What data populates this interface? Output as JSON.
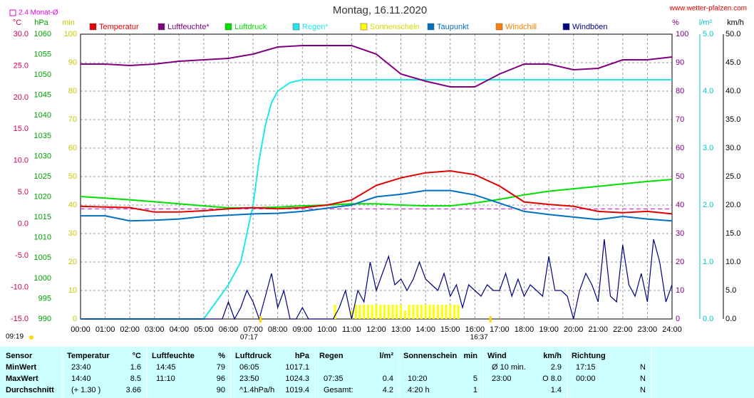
{
  "chart_data": {
    "type": "line",
    "title": "Montag, 16.11.2020",
    "site": "www.wetter-pfalzen.com",
    "monthly_avg": {
      "label": "2.4 Monat-Ø",
      "value": 2.4,
      "axis": "temp",
      "color": "#e000e0"
    },
    "sunrise": "07:17",
    "sunset": "16:37",
    "day_length": "09:19",
    "xlim": [
      0,
      24
    ],
    "xticks": [
      {
        "value": 0,
        "label": "00:00"
      },
      {
        "value": 1,
        "label": "01:00"
      },
      {
        "value": 2,
        "label": "02:00"
      },
      {
        "value": 3,
        "label": "03:00"
      },
      {
        "value": 4,
        "label": "04:00"
      },
      {
        "value": 5,
        "label": "05:00"
      },
      {
        "value": 6,
        "label": "06:00"
      },
      {
        "value": 7,
        "label": "07:00"
      },
      {
        "value": 8,
        "label": "08:00"
      },
      {
        "value": 9,
        "label": "09:00"
      },
      {
        "value": 10,
        "label": "10:00"
      },
      {
        "value": 11,
        "label": "11:00"
      },
      {
        "value": 12,
        "label": "12:00"
      },
      {
        "value": 13,
        "label": "13:00"
      },
      {
        "value": 14,
        "label": "14:00"
      },
      {
        "value": 15,
        "label": "15:00"
      },
      {
        "value": 16,
        "label": "16:00"
      },
      {
        "value": 17,
        "label": "17:00"
      },
      {
        "value": 18,
        "label": "18:00"
      },
      {
        "value": 19,
        "label": "19:00"
      },
      {
        "value": 20,
        "label": "20:00"
      },
      {
        "value": 21,
        "label": "21:00"
      },
      {
        "value": 22,
        "label": "22:00"
      },
      {
        "value": 23,
        "label": "23:00"
      },
      {
        "value": 24,
        "label": "24:00"
      }
    ],
    "grid": true,
    "grid_axis": "min",
    "axes": {
      "temp": {
        "unit": "°C",
        "color": "#d0005a",
        "lim": [
          -15,
          30
        ],
        "ticks": [
          {
            "value": 30,
            "label": "30.0"
          },
          {
            "value": 25,
            "label": "25.0"
          },
          {
            "value": 20,
            "label": "20.0"
          },
          {
            "value": 15,
            "label": "15.0"
          },
          {
            "value": 10,
            "label": "10.0"
          },
          {
            "value": 5,
            "label": "5.0"
          },
          {
            "value": 0,
            "label": "0.0"
          },
          {
            "value": -5,
            "label": "-5.0"
          },
          {
            "value": -10,
            "label": "-10.0"
          },
          {
            "value": -15,
            "label": "-15.0"
          }
        ]
      },
      "hpa": {
        "unit": "hPa",
        "color": "#00a000",
        "lim": [
          990,
          1060
        ],
        "ticks": [
          1060,
          1055,
          1050,
          1045,
          1040,
          1035,
          1030,
          1025,
          1020,
          1015,
          1010,
          1005,
          1000,
          995,
          990
        ]
      },
      "min": {
        "unit": "min",
        "color": "#c8c800",
        "lim": [
          0,
          100
        ],
        "ticks": [
          100,
          90,
          80,
          70,
          60,
          50,
          40,
          30,
          20,
          10,
          0
        ]
      },
      "pct": {
        "unit": "%",
        "color": "#800080",
        "lim": [
          0,
          100
        ],
        "ticks": [
          100,
          90,
          80,
          70,
          60,
          50,
          40,
          30,
          20,
          10,
          0
        ]
      },
      "rain": {
        "unit": "l/m²",
        "color": "#00c8c8",
        "lim": [
          0,
          5
        ],
        "ticks": [
          {
            "value": 5,
            "label": "5.0"
          },
          {
            "value": 4,
            "label": "4.0"
          },
          {
            "value": 3,
            "label": "3.0"
          },
          {
            "value": 2,
            "label": "2.0"
          },
          {
            "value": 1,
            "label": "1.0"
          },
          {
            "value": 0,
            "label": "0.0"
          }
        ]
      },
      "kmh": {
        "unit": "km/h",
        "color": "#000000",
        "lim": [
          0,
          50
        ],
        "ticks": [
          {
            "value": 50,
            "label": "50.0"
          },
          {
            "value": 45,
            "label": "45.0"
          },
          {
            "value": 40,
            "label": "40.0"
          },
          {
            "value": 35,
            "label": "35.0"
          },
          {
            "value": 30,
            "label": "30.0"
          },
          {
            "value": 25,
            "label": "25.0"
          },
          {
            "value": 20,
            "label": "20.0"
          },
          {
            "value": 15,
            "label": "15.0"
          },
          {
            "value": 10,
            "label": "10.0"
          },
          {
            "value": 5,
            "label": "5.0"
          },
          {
            "value": 0,
            "label": "0.0"
          }
        ]
      }
    },
    "x": [
      0,
      1,
      2,
      3,
      4,
      5,
      6,
      7,
      8,
      9,
      10,
      11,
      12,
      13,
      14,
      15,
      16,
      17,
      18,
      19,
      20,
      21,
      22,
      23,
      24
    ],
    "series": [
      {
        "name": "Temperatur",
        "color": "#e00000",
        "axis": "temp",
        "values": [
          2.8,
          2.7,
          2.6,
          1.9,
          1.9,
          2.1,
          2.4,
          2.6,
          2.4,
          2.6,
          3.0,
          3.8,
          6.1,
          7.3,
          8.1,
          8.4,
          7.8,
          6.0,
          3.5,
          3.1,
          2.8,
          2.0,
          1.8,
          2.0,
          1.6
        ]
      },
      {
        "name": "Luftfeuchte*",
        "color": "#800080",
        "axis": "pct",
        "values": [
          89.5,
          89.5,
          89,
          89.5,
          90.5,
          91,
          91.5,
          93,
          95.5,
          96,
          96,
          96,
          93,
          86,
          83.5,
          81.5,
          81.5,
          86,
          89.5,
          89.5,
          87.5,
          88,
          91,
          91,
          92
        ]
      },
      {
        "name": "Luftdruck",
        "color": "#00e000",
        "axis": "hpa",
        "values": [
          1020.1,
          1019.7,
          1019.3,
          1018.8,
          1018.3,
          1017.8,
          1017.3,
          1017.3,
          1017.5,
          1017.8,
          1018.0,
          1018.3,
          1018.3,
          1018.0,
          1017.8,
          1017.8,
          1018.5,
          1019.4,
          1020.5,
          1021.4,
          1022.0,
          1022.6,
          1023.2,
          1023.8,
          1024.3
        ]
      },
      {
        "name": "Regen*",
        "color": "#20e8e8",
        "axis": "rain",
        "x": [
          0,
          5,
          5.5,
          6,
          6.5,
          7,
          7.25,
          7.5,
          7.75,
          8,
          8.5,
          9,
          24
        ],
        "values": [
          0,
          0,
          0.3,
          0.6,
          1.0,
          2.0,
          2.8,
          3.4,
          3.8,
          4.0,
          4.15,
          4.2,
          4.2
        ]
      },
      {
        "name": "Sonnenschein",
        "color": "#ffff00",
        "axis": "min",
        "kind": "bar",
        "x": [
          10.33,
          11.0,
          11.17,
          11.33,
          11.5,
          11.67,
          11.83,
          12.0,
          12.17,
          12.33,
          12.5,
          12.67,
          12.83,
          13.0,
          13.17,
          13.33,
          13.5,
          13.67,
          13.83,
          14.0,
          14.17,
          14.33,
          14.5,
          14.67,
          14.83,
          15.0,
          15.17,
          15.33
        ],
        "values": [
          5,
          3,
          5,
          5,
          5,
          5,
          5,
          5,
          5,
          5,
          5,
          5,
          5,
          5,
          3,
          5,
          5,
          5,
          5,
          5,
          5,
          5,
          5,
          5,
          5,
          5,
          5,
          5
        ]
      },
      {
        "name": "Taupunkt",
        "color": "#0070c0",
        "axis": "temp",
        "values": [
          1.3,
          1.3,
          0.5,
          0.6,
          0.8,
          1.2,
          1.4,
          1.6,
          1.7,
          2.0,
          2.5,
          3.0,
          4.3,
          4.7,
          5.3,
          5.3,
          4.6,
          3.3,
          2.0,
          1.5,
          1.1,
          0.7,
          1.2,
          0.8,
          0.5
        ]
      },
      {
        "name": "Windchill",
        "color": "#ff8000",
        "axis": "temp"
      },
      {
        "name": "Windböen",
        "color": "#000080",
        "axis": "kmh",
        "x": [
          0,
          5.5,
          5.75,
          6,
          6.25,
          6.5,
          6.75,
          7,
          7.25,
          7.5,
          7.75,
          8,
          8.25,
          8.5,
          8.75,
          9,
          9.25,
          9.5,
          9.75,
          10,
          10.25,
          10.5,
          10.75,
          11,
          11.25,
          11.5,
          11.75,
          12,
          12.25,
          12.5,
          12.75,
          13,
          13.25,
          13.5,
          13.75,
          14,
          14.25,
          14.5,
          14.75,
          15,
          15.25,
          15.5,
          15.75,
          16,
          16.25,
          16.5,
          16.75,
          17,
          17.25,
          17.5,
          17.75,
          18,
          18.25,
          18.5,
          18.75,
          19,
          19.25,
          19.5,
          19.75,
          20,
          20.25,
          20.5,
          20.75,
          21,
          21.25,
          21.5,
          21.75,
          22,
          22.25,
          22.5,
          22.75,
          23,
          23.25,
          23.5,
          23.75,
          24
        ],
        "values": [
          0,
          0,
          0,
          3,
          0,
          2,
          5,
          3,
          0,
          4,
          8,
          2,
          5,
          0,
          0,
          2,
          0,
          0,
          0,
          0,
          0,
          2,
          5,
          0,
          5,
          3,
          10,
          5,
          8,
          11,
          6,
          7,
          5,
          7,
          10,
          7,
          6,
          5,
          8,
          4,
          6,
          2,
          6,
          5,
          4,
          6,
          5,
          5,
          8,
          4,
          7,
          4,
          6,
          5,
          4,
          11,
          5,
          5,
          4,
          0,
          5,
          8,
          6,
          3,
          14,
          4,
          3,
          13,
          6,
          4,
          8,
          3,
          14,
          10,
          3,
          6
        ]
      }
    ]
  },
  "table": {
    "sensor": "Sensor",
    "row_labels": [
      "MinWert",
      "MaxWert",
      "Durchschnitt"
    ],
    "columns": [
      {
        "name": "Temperatur",
        "unit": "°C",
        "rows": [
          [
            "23:40",
            "1.6"
          ],
          [
            "14:40",
            "8.5"
          ],
          [
            "(+ 1.30 )",
            "3.66"
          ]
        ]
      },
      {
        "name": "Luftfeuchte",
        "unit": "%",
        "rows": [
          [
            "14:45",
            "79"
          ],
          [
            "11:10",
            "96"
          ],
          [
            null,
            "90"
          ]
        ]
      },
      {
        "name": "Luftdruck",
        "unit": "hPa",
        "rows": [
          [
            "06:05",
            "1017.1"
          ],
          [
            "23:50",
            "1024.3"
          ],
          [
            "^1.4hPa/h",
            "1019.4"
          ]
        ]
      },
      {
        "name": "Regen",
        "unit": "l/m²",
        "rows": [
          [
            null,
            null
          ],
          [
            "07:35",
            "0.4"
          ],
          [
            "Gesamt:",
            "4.2"
          ]
        ]
      },
      {
        "name": "Sonnenschein",
        "unit": "min",
        "rows": [
          [
            null,
            null
          ],
          [
            "10:20",
            "5"
          ],
          [
            "4:20 h",
            "1"
          ]
        ]
      },
      {
        "name": "Wind",
        "unit": "km/h",
        "rows": [
          [
            "Ø 10 min.",
            "2.9"
          ],
          [
            "23:00",
            "O 8.0"
          ],
          [
            null,
            "1.4"
          ]
        ]
      },
      {
        "name": "Richtung",
        "unit": null,
        "rows": [
          [
            "17:15",
            "N"
          ],
          [
            "00:00",
            "N"
          ],
          [
            null,
            "N"
          ]
        ]
      }
    ]
  }
}
